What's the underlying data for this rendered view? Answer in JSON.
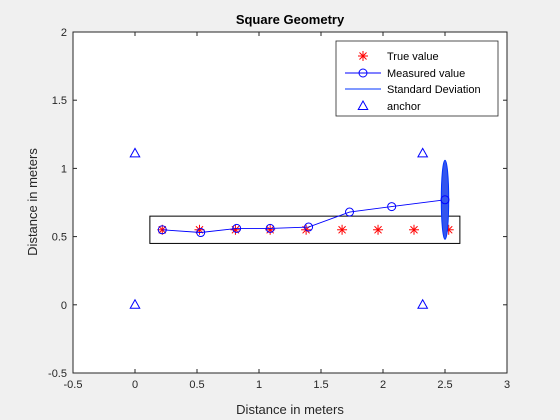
{
  "chart_data": {
    "type": "line",
    "title": "Square Geometry",
    "xlabel": "Distance in meters",
    "ylabel": "Distance in meters",
    "xlim": [
      -0.5,
      3
    ],
    "ylim": [
      -0.5,
      2
    ],
    "xticks": [
      -0.5,
      0,
      0.5,
      1,
      1.5,
      2,
      2.5,
      3
    ],
    "xtick_labels": [
      "-0.5",
      "0",
      "0.5",
      "1",
      "1.5",
      "2",
      "2.5",
      "3"
    ],
    "yticks": [
      -0.5,
      0,
      0.5,
      1,
      1.5,
      2
    ],
    "ytick_labels": [
      "-0.5",
      "0",
      "0.5",
      "1",
      "1.5",
      "2"
    ],
    "grid": false,
    "legend_position": "top-right",
    "series": [
      {
        "name": "True value",
        "kind": "marker",
        "marker": "asterisk",
        "color": "#ff0000",
        "x": [
          0.22,
          0.52,
          0.81,
          1.09,
          1.38,
          1.67,
          1.96,
          2.25,
          2.53
        ],
        "y": [
          0.55,
          0.55,
          0.55,
          0.55,
          0.55,
          0.55,
          0.55,
          0.55,
          0.55
        ]
      },
      {
        "name": "Measured value",
        "kind": "line-marker",
        "marker": "circle",
        "color": "#0000ff",
        "x": [
          0.22,
          0.53,
          0.82,
          1.09,
          1.4,
          1.73,
          2.07,
          2.5
        ],
        "y": [
          0.55,
          0.53,
          0.56,
          0.56,
          0.57,
          0.68,
          0.72,
          0.77
        ]
      },
      {
        "name": "Standard Deviation",
        "kind": "ellipse",
        "color": "#0033ff",
        "fill": "#3355ee",
        "center": [
          2.5,
          0.77
        ],
        "radius_x": 0.03,
        "radius_y": 0.29
      },
      {
        "name": "anchor",
        "kind": "marker",
        "marker": "triangle",
        "color": "#0000ff",
        "x": [
          0,
          0,
          2.32,
          2.32
        ],
        "y": [
          1.11,
          0,
          1.11,
          0
        ]
      }
    ],
    "annotations": [
      {
        "kind": "rectangle",
        "color": "#000000",
        "x0": 0.12,
        "x1": 2.62,
        "y0": 0.45,
        "y1": 0.65
      }
    ]
  }
}
